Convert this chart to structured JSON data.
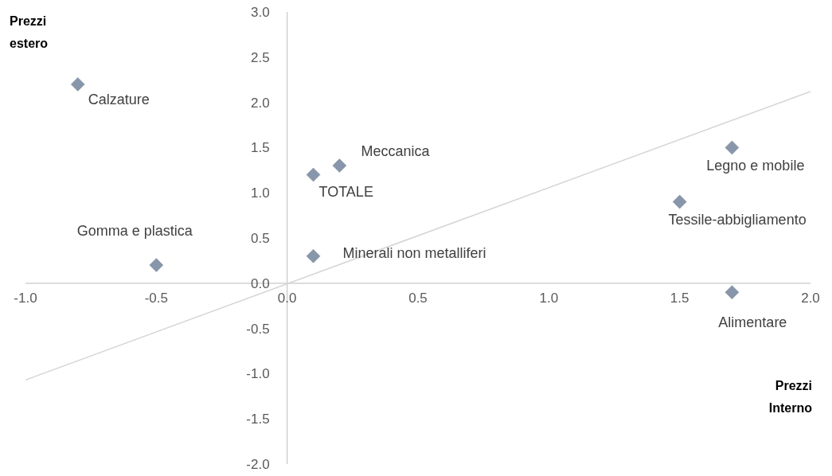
{
  "chart_data": {
    "type": "scatter",
    "xlabel": "Prezzi Interno",
    "ylabel": "Prezzi estero",
    "xlim": [
      -1,
      2
    ],
    "ylim": [
      -2,
      3
    ],
    "xticks": [
      {
        "value": -1,
        "label": "-1.0"
      },
      {
        "value": -0.5,
        "label": "-0.5"
      },
      {
        "value": 0,
        "label": "0.0"
      },
      {
        "value": 0.5,
        "label": "0.5"
      },
      {
        "value": 1,
        "label": "1.0"
      },
      {
        "value": 1.5,
        "label": "1.5"
      },
      {
        "value": 2,
        "label": "2.0"
      }
    ],
    "yticks": [
      {
        "value": -2,
        "label": "-2.0"
      },
      {
        "value": -1.5,
        "label": "-1.5"
      },
      {
        "value": -1,
        "label": "-1.0"
      },
      {
        "value": -0.5,
        "label": "-0.5"
      },
      {
        "value": 0,
        "label": "0.0"
      },
      {
        "value": 0.5,
        "label": "0.5"
      },
      {
        "value": 1,
        "label": "1.0"
      },
      {
        "value": 1.5,
        "label": "1.5"
      },
      {
        "value": 2,
        "label": "2.0"
      },
      {
        "value": 2.5,
        "label": "2.5"
      },
      {
        "value": 3,
        "label": "3.0"
      }
    ],
    "series": [
      {
        "marker": "diamond",
        "color": "#8896ab",
        "x": [
          -0.8,
          -0.5,
          0.1,
          0.2,
          0.1,
          1.7,
          1.5,
          1.7
        ],
        "values": [
          2.2,
          0.2,
          1.2,
          1.3,
          0.3,
          1.5,
          0.9,
          -0.1
        ]
      },
      {
        "type": "line",
        "color": "#d4d4d4",
        "x": [
          -1,
          2
        ],
        "values": [
          -1.07,
          2.12
        ]
      }
    ],
    "annotations": [
      {
        "text": "Calzature",
        "x": -0.8,
        "y": 2.2
      },
      {
        "text": "Gomma e plastica",
        "x": -0.5,
        "y": 0.2
      },
      {
        "text": "TOTALE",
        "x": 0.1,
        "y": 1.2
      },
      {
        "text": "Meccanica",
        "x": 0.2,
        "y": 1.3
      },
      {
        "text": "Minerali non metalliferi",
        "x": 0.1,
        "y": 0.3
      },
      {
        "text": "Legno e mobile",
        "x": 1.7,
        "y": 1.5
      },
      {
        "text": "Tessile-abbigliamento",
        "x": 1.5,
        "y": 0.9
      },
      {
        "text": "Alimentare",
        "x": 1.7,
        "y": -0.1
      }
    ]
  }
}
